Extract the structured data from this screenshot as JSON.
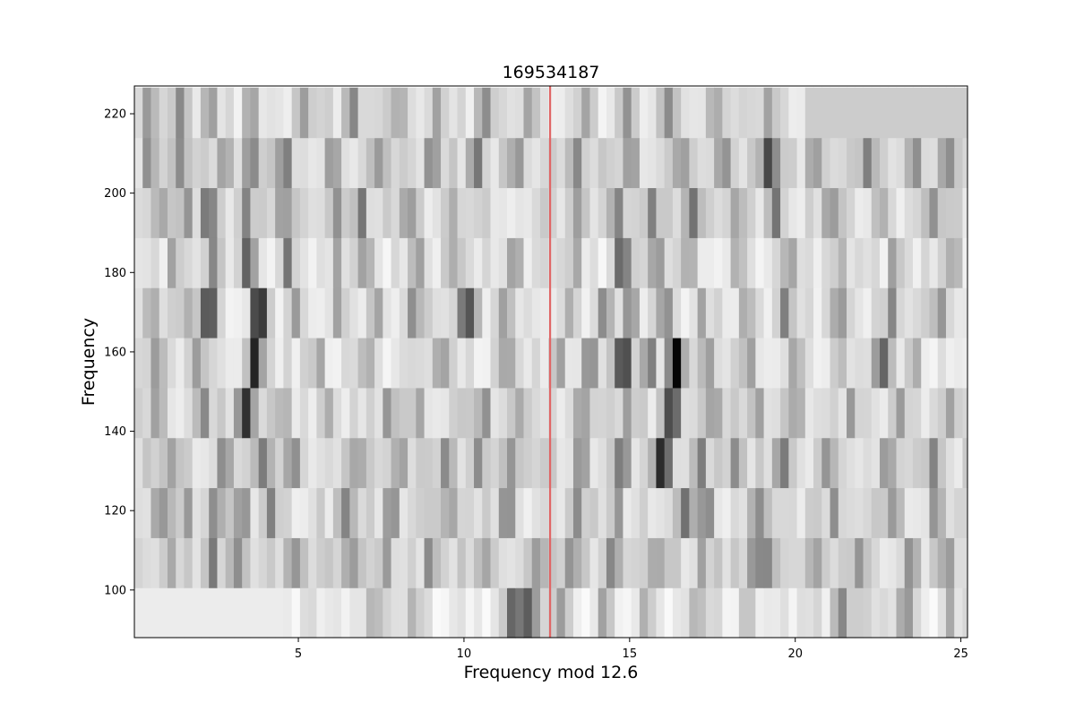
{
  "chart_data": {
    "type": "heatmap",
    "title": "169534187",
    "xlabel": "Frequency mod 12.6",
    "ylabel": "Frequency",
    "xlim": [
      0.05,
      25.2
    ],
    "ylim": [
      88,
      227
    ],
    "x_ticks": [
      5,
      10,
      15,
      20,
      25
    ],
    "y_ticks": [
      100,
      120,
      140,
      160,
      180,
      200,
      220
    ],
    "colormap": "gray_r",
    "grid": false,
    "legend": "none",
    "row_height": 12.6,
    "bin_width": 0.25,
    "marker_line": {
      "x": 12.6,
      "color": "#e06666"
    },
    "missing_color": "#cccccc",
    "rows": [
      {
        "y_center": 94.3,
        "default_power": 0.07,
        "peaks": [
          [
            11.9,
            0.6,
            0.6
          ],
          [
            11.4,
            0.35,
            0.35
          ],
          [
            7.3,
            0.3,
            0.3
          ],
          [
            8.5,
            0.25,
            0.3
          ],
          [
            12.9,
            0.3,
            0.3
          ],
          [
            14.2,
            0.3,
            0.3
          ],
          [
            15.5,
            0.2,
            0.3
          ],
          [
            17.1,
            0.25,
            0.3
          ],
          [
            18.6,
            0.2,
            0.3
          ],
          [
            21.4,
            0.45,
            0.3
          ],
          [
            22.1,
            0.2,
            0.3
          ],
          [
            23.3,
            0.35,
            0.3
          ],
          [
            24.7,
            0.3,
            0.3
          ]
        ],
        "blank_ranges": [
          [
            0.05,
            4.5
          ]
        ]
      },
      {
        "y_center": 106.9,
        "default_power": 0.14,
        "peaks": [
          [
            1.2,
            0.25,
            0.3
          ],
          [
            2.4,
            0.3,
            0.3
          ],
          [
            3.1,
            0.25,
            0.3
          ],
          [
            4.9,
            0.3,
            0.3
          ],
          [
            6.6,
            0.3,
            0.3
          ],
          [
            7.6,
            0.25,
            0.3
          ],
          [
            9.0,
            0.35,
            0.3
          ],
          [
            10.7,
            0.25,
            0.3
          ],
          [
            12.3,
            0.25,
            0.3
          ],
          [
            13.3,
            0.3,
            0.3
          ],
          [
            14.5,
            0.35,
            0.3
          ],
          [
            15.8,
            0.3,
            0.3
          ],
          [
            17.2,
            0.25,
            0.3
          ],
          [
            18.8,
            0.42,
            0.35
          ],
          [
            19.2,
            0.35,
            0.3
          ],
          [
            20.6,
            0.25,
            0.3
          ],
          [
            22.0,
            0.3,
            0.3
          ],
          [
            23.5,
            0.25,
            0.3
          ],
          [
            24.6,
            0.35,
            0.3
          ]
        ],
        "blank_ranges": []
      },
      {
        "y_center": 119.5,
        "default_power": 0.12,
        "peaks": [
          [
            0.9,
            0.35,
            0.35
          ],
          [
            1.6,
            0.3,
            0.3
          ],
          [
            2.5,
            0.3,
            0.3
          ],
          [
            3.3,
            0.35,
            0.3
          ],
          [
            4.2,
            0.3,
            0.3
          ],
          [
            6.4,
            0.4,
            0.35
          ],
          [
            7.8,
            0.3,
            0.3
          ],
          [
            9.6,
            0.3,
            0.3
          ],
          [
            11.3,
            0.35,
            0.3
          ],
          [
            13.4,
            0.3,
            0.3
          ],
          [
            14.6,
            0.3,
            0.3
          ],
          [
            16.7,
            0.4,
            0.3
          ],
          [
            17.3,
            0.35,
            0.3
          ],
          [
            18.9,
            0.3,
            0.3
          ],
          [
            21.2,
            0.25,
            0.3
          ],
          [
            23.0,
            0.3,
            0.3
          ],
          [
            24.2,
            0.3,
            0.3
          ]
        ],
        "blank_ranges": []
      },
      {
        "y_center": 132.1,
        "default_power": 0.14,
        "peaks": [
          [
            1.1,
            0.3,
            0.3
          ],
          [
            2.8,
            0.35,
            0.3
          ],
          [
            3.9,
            0.4,
            0.3
          ],
          [
            4.8,
            0.35,
            0.3
          ],
          [
            6.8,
            0.25,
            0.3
          ],
          [
            8.1,
            0.25,
            0.3
          ],
          [
            9.4,
            0.3,
            0.3
          ],
          [
            10.4,
            0.35,
            0.3
          ],
          [
            11.4,
            0.3,
            0.3
          ],
          [
            13.5,
            0.35,
            0.3
          ],
          [
            14.8,
            0.45,
            0.3
          ],
          [
            16.0,
            0.75,
            0.35
          ],
          [
            17.1,
            0.35,
            0.3
          ],
          [
            18.2,
            0.3,
            0.3
          ],
          [
            19.6,
            0.35,
            0.3
          ],
          [
            21.0,
            0.3,
            0.3
          ],
          [
            22.8,
            0.3,
            0.3
          ],
          [
            24.2,
            0.3,
            0.3
          ]
        ],
        "blank_ranges": []
      },
      {
        "y_center": 144.7,
        "default_power": 0.12,
        "peaks": [
          [
            0.8,
            0.25,
            0.3
          ],
          [
            2.1,
            0.35,
            0.35
          ],
          [
            3.4,
            0.7,
            0.35
          ],
          [
            4.6,
            0.25,
            0.3
          ],
          [
            5.9,
            0.25,
            0.3
          ],
          [
            7.7,
            0.3,
            0.3
          ],
          [
            8.6,
            0.25,
            0.3
          ],
          [
            10.6,
            0.3,
            0.3
          ],
          [
            11.6,
            0.25,
            0.3
          ],
          [
            13.6,
            0.3,
            0.3
          ],
          [
            14.9,
            0.3,
            0.3
          ],
          [
            16.3,
            0.68,
            0.35
          ],
          [
            17.5,
            0.3,
            0.3
          ],
          [
            18.9,
            0.3,
            0.3
          ],
          [
            20.0,
            0.3,
            0.3
          ],
          [
            21.7,
            0.3,
            0.3
          ],
          [
            23.2,
            0.25,
            0.3
          ],
          [
            24.7,
            0.3,
            0.3
          ]
        ],
        "blank_ranges": []
      },
      {
        "y_center": 157.3,
        "default_power": 0.1,
        "peaks": [
          [
            0.7,
            0.25,
            0.3
          ],
          [
            2.0,
            0.3,
            0.3
          ],
          [
            3.7,
            0.75,
            0.3
          ],
          [
            5.6,
            0.2,
            0.3
          ],
          [
            7.1,
            0.25,
            0.3
          ],
          [
            9.3,
            0.25,
            0.3
          ],
          [
            11.3,
            0.3,
            0.3
          ],
          [
            12.9,
            0.3,
            0.3
          ],
          [
            13.8,
            0.35,
            0.3
          ],
          [
            14.8,
            0.75,
            0.35
          ],
          [
            15.6,
            0.45,
            0.3
          ],
          [
            16.4,
            0.95,
            0.3
          ],
          [
            17.4,
            0.3,
            0.3
          ],
          [
            18.6,
            0.35,
            0.3
          ],
          [
            20.0,
            0.3,
            0.3
          ],
          [
            21.3,
            0.2,
            0.3
          ],
          [
            22.6,
            0.55,
            0.35
          ],
          [
            23.6,
            0.2,
            0.3
          ]
        ],
        "blank_ranges": []
      },
      {
        "y_center": 169.9,
        "default_power": 0.1,
        "peaks": [
          [
            0.6,
            0.3,
            0.3
          ],
          [
            1.6,
            0.3,
            0.3
          ],
          [
            2.3,
            0.78,
            0.3
          ],
          [
            3.8,
            0.98,
            0.3
          ],
          [
            4.9,
            0.3,
            0.3
          ],
          [
            6.2,
            0.3,
            0.3
          ],
          [
            7.3,
            0.25,
            0.3
          ],
          [
            8.5,
            0.3,
            0.3
          ],
          [
            10.1,
            0.65,
            0.35
          ],
          [
            11.2,
            0.25,
            0.3
          ],
          [
            13.2,
            0.25,
            0.3
          ],
          [
            14.2,
            0.35,
            0.3
          ],
          [
            15.0,
            0.4,
            0.3
          ],
          [
            16.1,
            0.45,
            0.3
          ],
          [
            17.2,
            0.3,
            0.3
          ],
          [
            18.5,
            0.3,
            0.3
          ],
          [
            19.7,
            0.35,
            0.3
          ],
          [
            21.3,
            0.3,
            0.3
          ],
          [
            22.9,
            0.3,
            0.3
          ],
          [
            24.4,
            0.3,
            0.3
          ]
        ],
        "blank_ranges": []
      },
      {
        "y_center": 182.5,
        "default_power": 0.08,
        "peaks": [
          [
            1.2,
            0.25,
            0.3
          ],
          [
            2.4,
            0.35,
            0.3
          ],
          [
            3.5,
            0.6,
            0.35
          ],
          [
            4.7,
            0.4,
            0.3
          ],
          [
            6.2,
            0.3,
            0.3
          ],
          [
            7.0,
            0.35,
            0.3
          ],
          [
            8.6,
            0.25,
            0.3
          ],
          [
            9.7,
            0.3,
            0.3
          ],
          [
            11.5,
            0.3,
            0.3
          ],
          [
            13.3,
            0.25,
            0.3
          ],
          [
            14.8,
            0.6,
            0.35
          ],
          [
            15.8,
            0.4,
            0.3
          ],
          [
            16.8,
            0.3,
            0.3
          ],
          [
            18.3,
            0.3,
            0.3
          ],
          [
            19.8,
            0.35,
            0.3
          ],
          [
            21.3,
            0.25,
            0.3
          ],
          [
            23.0,
            0.3,
            0.3
          ],
          [
            24.8,
            0.3,
            0.3
          ]
        ],
        "blank_ranges": []
      },
      {
        "y_center": 195.1,
        "default_power": 0.12,
        "peaks": [
          [
            0.8,
            0.3,
            0.3
          ],
          [
            1.6,
            0.25,
            0.3
          ],
          [
            2.3,
            0.55,
            0.35
          ],
          [
            3.4,
            0.4,
            0.3
          ],
          [
            4.6,
            0.35,
            0.3
          ],
          [
            6.1,
            0.3,
            0.3
          ],
          [
            6.9,
            0.4,
            0.3
          ],
          [
            8.3,
            0.3,
            0.3
          ],
          [
            9.6,
            0.25,
            0.3
          ],
          [
            13.5,
            0.3,
            0.3
          ],
          [
            14.6,
            0.35,
            0.3
          ],
          [
            15.7,
            0.4,
            0.3
          ],
          [
            16.9,
            0.4,
            0.3
          ],
          [
            18.2,
            0.3,
            0.3
          ],
          [
            19.4,
            0.35,
            0.3
          ],
          [
            21.1,
            0.3,
            0.3
          ],
          [
            22.6,
            0.25,
            0.3
          ],
          [
            24.2,
            0.3,
            0.3
          ]
        ],
        "blank_ranges": []
      },
      {
        "y_center": 207.7,
        "default_power": 0.14,
        "peaks": [
          [
            0.5,
            0.35,
            0.3
          ],
          [
            1.5,
            0.3,
            0.3
          ],
          [
            2.8,
            0.3,
            0.3
          ],
          [
            3.6,
            0.4,
            0.35
          ],
          [
            4.6,
            0.4,
            0.3
          ],
          [
            6.0,
            0.35,
            0.3
          ],
          [
            7.5,
            0.3,
            0.3
          ],
          [
            9.0,
            0.3,
            0.3
          ],
          [
            10.4,
            0.35,
            0.3
          ],
          [
            11.6,
            0.25,
            0.3
          ],
          [
            13.4,
            0.25,
            0.3
          ],
          [
            15.0,
            0.3,
            0.3
          ],
          [
            16.6,
            0.3,
            0.3
          ],
          [
            17.8,
            0.3,
            0.3
          ],
          [
            19.2,
            0.55,
            0.35
          ],
          [
            20.6,
            0.3,
            0.3
          ],
          [
            22.2,
            0.3,
            0.3
          ],
          [
            23.6,
            0.3,
            0.3
          ],
          [
            24.6,
            0.35,
            0.3
          ]
        ],
        "blank_ranges": []
      },
      {
        "y_center": 220.3,
        "default_power": 0.1,
        "peaks": [
          [
            0.5,
            0.25,
            0.3
          ],
          [
            1.4,
            0.3,
            0.3
          ],
          [
            2.3,
            0.3,
            0.3
          ],
          [
            3.6,
            0.25,
            0.3
          ],
          [
            5.1,
            0.3,
            0.3
          ],
          [
            6.6,
            0.5,
            0.3
          ],
          [
            8.0,
            0.3,
            0.3
          ],
          [
            9.2,
            0.25,
            0.3
          ],
          [
            10.6,
            0.3,
            0.3
          ],
          [
            11.9,
            0.25,
            0.3
          ],
          [
            13.6,
            0.3,
            0.3
          ],
          [
            14.9,
            0.3,
            0.3
          ],
          [
            16.2,
            0.3,
            0.3
          ],
          [
            17.6,
            0.25,
            0.3
          ],
          [
            19.2,
            0.3,
            0.3
          ]
        ],
        "blank_ranges": [
          [
            20.2,
            25.2
          ]
        ]
      }
    ]
  }
}
